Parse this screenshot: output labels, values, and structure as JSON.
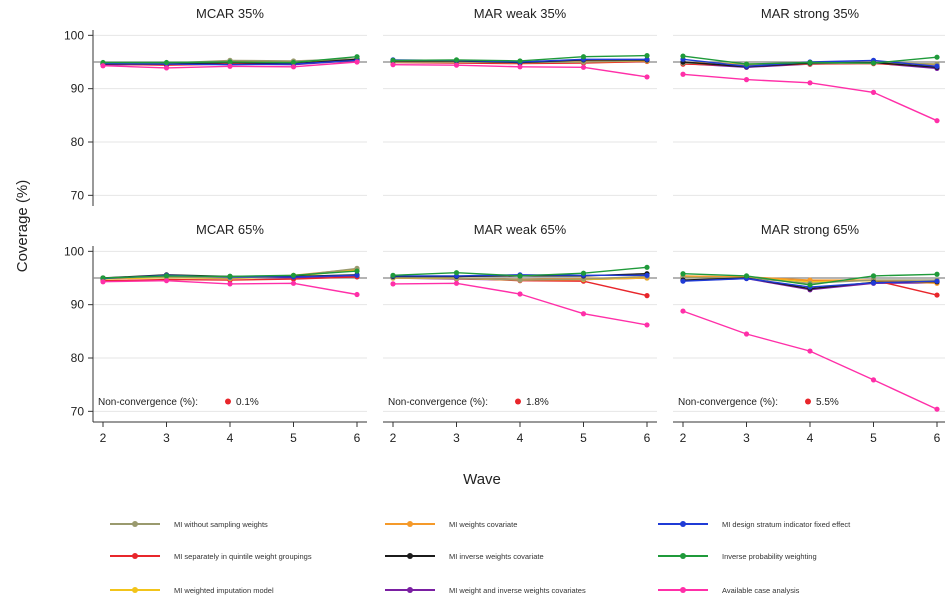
{
  "chart_data": {
    "type": "line",
    "ylabel": "Coverage (%)",
    "xlabel": "Wave",
    "x": [
      2,
      3,
      4,
      5,
      6
    ],
    "ylim": [
      68,
      101
    ],
    "yticks": [
      70,
      80,
      90,
      100
    ],
    "reference_line": 95,
    "grid": "horizontal",
    "legend_position": "bottom",
    "nonconvergence_label": "Non-convergence (%):",
    "colors": {
      "MI without sampling weights": "#9a9a6e",
      "MI separately in quintile weight groupings": "#e8262b",
      "MI weighted imputation model": "#f2c41a",
      "MI weights covariate": "#f59a2a",
      "MI inverse weights covariate": "#1b1b1b",
      "MI weight and inverse weights covariates": "#7a1fa2",
      "MI design stratum indicator fixed effect": "#1f3bd6",
      "Inverse probability weighting": "#1f9a3a",
      "Available case analysis": "#ff2fa8"
    },
    "legend": [
      "MI without sampling weights",
      "MI separately in quintile weight groupings",
      "MI weighted imputation model",
      "MI weights covariate",
      "MI inverse weights covariate",
      "MI weight and inverse weights covariates",
      "MI design stratum indicator fixed effect",
      "Inverse probability weighting",
      "Available case analysis"
    ],
    "panels": [
      {
        "title": "MCAR 35%",
        "series": [
          {
            "name": "MI without sampling weights",
            "values": [
              94.8,
              94.8,
              95.3,
              95.2,
              95.6
            ]
          },
          {
            "name": "MI separately in quintile weight groupings",
            "values": [
              94.6,
              94.4,
              94.6,
              94.8,
              95.2
            ]
          },
          {
            "name": "MI weighted imputation model",
            "values": [
              94.7,
              94.7,
              95.0,
              95.0,
              95.4
            ]
          },
          {
            "name": "MI weights covariate",
            "values": [
              94.8,
              94.8,
              95.1,
              95.1,
              95.5
            ]
          },
          {
            "name": "MI inverse weights covariate",
            "values": [
              94.6,
              94.6,
              94.9,
              94.7,
              95.5
            ]
          },
          {
            "name": "MI weight and inverse weights covariates",
            "values": [
              94.5,
              94.5,
              94.6,
              94.5,
              95.3
            ]
          },
          {
            "name": "MI design stratum indicator fixed effect",
            "values": [
              94.7,
              94.6,
              94.5,
              94.6,
              95.3
            ]
          },
          {
            "name": "Inverse probability weighting",
            "values": [
              94.9,
              94.9,
              95.0,
              94.9,
              96.0
            ]
          },
          {
            "name": "Available case analysis",
            "values": [
              94.3,
              93.9,
              94.2,
              94.1,
              95.0
            ]
          }
        ]
      },
      {
        "title": "MAR weak 35%",
        "series": [
          {
            "name": "MI without sampling weights",
            "values": [
              95.0,
              95.0,
              94.9,
              95.0,
              95.3
            ]
          },
          {
            "name": "MI separately in quintile weight groupings",
            "values": [
              94.9,
              94.8,
              94.7,
              94.8,
              95.1
            ]
          },
          {
            "name": "MI weighted imputation model",
            "values": [
              95.0,
              95.0,
              94.9,
              95.0,
              95.2
            ]
          },
          {
            "name": "MI weights covariate",
            "values": [
              95.1,
              95.0,
              94.9,
              95.1,
              95.3
            ]
          },
          {
            "name": "MI inverse weights covariate",
            "values": [
              95.2,
              95.2,
              94.9,
              95.4,
              95.4
            ]
          },
          {
            "name": "MI weight and inverse weights covariates",
            "values": [
              95.1,
              95.0,
              94.8,
              95.3,
              95.2
            ]
          },
          {
            "name": "MI design stratum indicator fixed effect",
            "values": [
              95.4,
              95.3,
              95.0,
              95.5,
              95.5
            ]
          },
          {
            "name": "Inverse probability weighting",
            "values": [
              95.3,
              95.4,
              95.2,
              96.0,
              96.2
            ]
          },
          {
            "name": "Available case analysis",
            "values": [
              94.5,
              94.4,
              94.1,
              94.0,
              92.2
            ]
          }
        ]
      },
      {
        "title": "MAR strong 35%",
        "series": [
          {
            "name": "MI without sampling weights",
            "values": [
              94.8,
              94.5,
              94.7,
              94.8,
              94.6
            ]
          },
          {
            "name": "MI separately in quintile weight groupings",
            "values": [
              94.6,
              94.3,
              94.6,
              94.7,
              94.2
            ]
          },
          {
            "name": "MI weighted imputation model",
            "values": [
              94.9,
              94.6,
              94.8,
              94.9,
              94.6
            ]
          },
          {
            "name": "MI weights covariate",
            "values": [
              94.9,
              94.5,
              94.8,
              94.8,
              94.5
            ]
          },
          {
            "name": "MI inverse weights covariate",
            "values": [
              95.0,
              94.1,
              94.8,
              94.9,
              94.0
            ]
          },
          {
            "name": "MI weight and inverse weights covariates",
            "values": [
              94.7,
              94.0,
              94.6,
              94.8,
              93.8
            ]
          },
          {
            "name": "MI design stratum indicator fixed effect",
            "values": [
              95.5,
              94.2,
              95.0,
              95.3,
              94.2
            ]
          },
          {
            "name": "Inverse probability weighting",
            "values": [
              96.1,
              94.6,
              94.9,
              94.8,
              95.9
            ]
          },
          {
            "name": "Available case analysis",
            "values": [
              92.7,
              91.7,
              91.1,
              89.3,
              84.0
            ]
          }
        ]
      },
      {
        "title": "MCAR 65%",
        "nonconvergence": "0.1%",
        "series": [
          {
            "name": "MI without sampling weights",
            "values": [
              95.0,
              95.2,
              95.0,
              95.4,
              96.8
            ]
          },
          {
            "name": "MI separately in quintile weight groupings",
            "values": [
              94.5,
              94.7,
              94.6,
              94.8,
              95.2
            ]
          },
          {
            "name": "MI weighted imputation model",
            "values": [
              94.8,
              95.1,
              94.9,
              95.3,
              96.5
            ]
          },
          {
            "name": "MI weights covariate",
            "values": [
              94.9,
              95.3,
              95.0,
              95.5,
              96.7
            ]
          },
          {
            "name": "MI inverse weights covariate",
            "values": [
              95.0,
              95.6,
              95.3,
              95.3,
              95.6
            ]
          },
          {
            "name": "MI weight and inverse weights covariates",
            "values": [
              94.8,
              95.3,
              95.1,
              95.1,
              95.4
            ]
          },
          {
            "name": "MI design stratum indicator fixed effect",
            "values": [
              94.9,
              95.5,
              95.2,
              95.2,
              95.5
            ]
          },
          {
            "name": "Inverse probability weighting",
            "values": [
              95.0,
              95.4,
              95.3,
              95.5,
              96.3
            ]
          },
          {
            "name": "Available case analysis",
            "values": [
              94.3,
              94.5,
              93.9,
              94.0,
              91.9
            ]
          }
        ]
      },
      {
        "title": "MAR weak 65%",
        "nonconvergence": "1.8%",
        "series": [
          {
            "name": "MI without sampling weights",
            "values": [
              95.1,
              95.0,
              94.6,
              94.8,
              95.3
            ]
          },
          {
            "name": "MI separately in quintile weight groupings",
            "values": [
              95.1,
              95.0,
              94.5,
              94.4,
              91.7
            ]
          },
          {
            "name": "MI weighted imputation model",
            "values": [
              95.0,
              94.9,
              94.6,
              94.7,
              95.0
            ]
          },
          {
            "name": "MI weights covariate",
            "values": [
              95.2,
              95.0,
              94.7,
              94.9,
              95.1
            ]
          },
          {
            "name": "MI inverse weights covariate",
            "values": [
              95.3,
              95.3,
              95.4,
              95.4,
              95.8
            ]
          },
          {
            "name": "MI weight and inverse weights covariates",
            "values": [
              95.0,
              94.8,
              94.6,
              94.7,
              95.0
            ]
          },
          {
            "name": "MI design stratum indicator fixed effect",
            "values": [
              95.4,
              95.4,
              95.6,
              95.5,
              95.5
            ]
          },
          {
            "name": "Inverse probability weighting",
            "values": [
              95.5,
              96.0,
              95.4,
              95.9,
              97.0
            ]
          },
          {
            "name": "Available case analysis",
            "values": [
              93.9,
              94.0,
              92.0,
              88.3,
              86.2
            ]
          }
        ]
      },
      {
        "title": "MAR strong 65%",
        "nonconvergence": "5.5%",
        "series": [
          {
            "name": "MI without sampling weights",
            "values": [
              95.1,
              95.0,
              94.0,
              94.6,
              94.6
            ]
          },
          {
            "name": "MI separately in quintile weight groupings",
            "values": [
              95.3,
              95.2,
              94.5,
              94.6,
              91.8
            ]
          },
          {
            "name": "MI weighted imputation model",
            "values": [
              95.2,
              95.1,
              94.3,
              94.5,
              94.3
            ]
          },
          {
            "name": "MI weights covariate",
            "values": [
              95.4,
              95.2,
              94.6,
              94.6,
              94.0
            ]
          },
          {
            "name": "MI inverse weights covariate",
            "values": [
              94.6,
              95.0,
              93.0,
              94.2,
              94.3
            ]
          },
          {
            "name": "MI weight and inverse weights covariates",
            "values": [
              94.5,
              94.9,
              92.8,
              94.0,
              94.1
            ]
          },
          {
            "name": "MI design stratum indicator fixed effect",
            "values": [
              94.4,
              94.9,
              93.3,
              94.1,
              94.4
            ]
          },
          {
            "name": "Inverse probability weighting",
            "values": [
              95.8,
              95.4,
              93.7,
              95.4,
              95.7
            ]
          },
          {
            "name": "Available case analysis",
            "values": [
              88.8,
              84.5,
              81.3,
              75.9,
              70.4
            ]
          }
        ]
      }
    ]
  }
}
